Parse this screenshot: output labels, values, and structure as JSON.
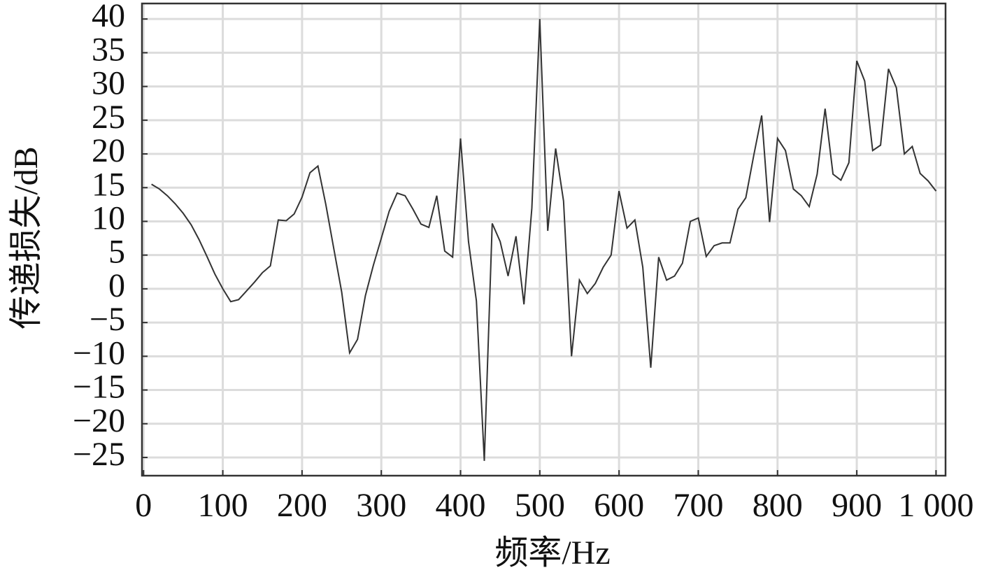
{
  "chart_data": {
    "type": "line",
    "x_label": "频率/Hz",
    "y_label": "传递损失/dB",
    "x": [
      10,
      20,
      30,
      40,
      50,
      60,
      70,
      80,
      90,
      100,
      110,
      120,
      130,
      140,
      150,
      160,
      170,
      180,
      190,
      200,
      210,
      220,
      230,
      240,
      250,
      260,
      270,
      280,
      290,
      300,
      310,
      320,
      330,
      340,
      350,
      360,
      370,
      380,
      390,
      400,
      410,
      420,
      430,
      440,
      450,
      460,
      470,
      480,
      490,
      500,
      510,
      520,
      530,
      540,
      550,
      560,
      570,
      580,
      590,
      600,
      610,
      620,
      630,
      640,
      650,
      660,
      670,
      680,
      690,
      700,
      710,
      720,
      730,
      740,
      750,
      760,
      770,
      780,
      790,
      800,
      810,
      820,
      830,
      840,
      850,
      860,
      870,
      880,
      890,
      900,
      910,
      920,
      930,
      940,
      950,
      960,
      970,
      980,
      990,
      1000
    ],
    "values": [
      15.5,
      14.8,
      13.8,
      12.6,
      11.2,
      9.5,
      7.3,
      4.8,
      2.2,
      0,
      -1.9,
      -1.6,
      -0.3,
      1,
      2.4,
      3.4,
      10.2,
      10.1,
      11.1,
      13.6,
      17.2,
      18.2,
      12.5,
      6,
      -0.5,
      -9.5,
      -7.5,
      -1,
      3.5,
      7.5,
      11.5,
      14.2,
      13.8,
      11.8,
      9.6,
      9.1,
      13.8,
      5.6,
      4.7,
      22.3,
      7,
      -1.8,
      -25.5,
      9.7,
      7,
      1.9,
      7.8,
      -2.3,
      12,
      40,
      8.6,
      20.8,
      13,
      -10,
      1.3,
      -0.7,
      0.8,
      3.2,
      5,
      14.5,
      9,
      10.2,
      3.2,
      -11.7,
      4.7,
      1.3,
      1.9,
      3.8,
      10,
      10.5,
      4.8,
      6.4,
      6.8,
      6.8,
      11.8,
      13.5,
      19.8,
      25.7,
      9.9,
      22.3,
      20.5,
      14.8,
      13.8,
      12.2,
      17,
      26.7,
      17,
      16.1,
      18.7,
      33.8,
      30.8,
      20.5,
      21.3,
      32.6,
      29.8,
      20,
      21.1,
      17.1,
      16,
      14.5
    ],
    "color": "#333333",
    "xlim": [
      -2,
      1012
    ],
    "ylim": [
      -27.7,
      42.3
    ],
    "xticks": [
      0,
      100,
      200,
      300,
      400,
      500,
      600,
      700,
      800,
      900,
      {
        "value": 1000,
        "label": "1 000"
      }
    ],
    "yticks": [
      {
        "value": -25,
        "label": "−25"
      },
      {
        "value": -20,
        "label": "−20"
      },
      {
        "value": -15,
        "label": "−15"
      },
      {
        "value": -10,
        "label": "−10"
      },
      {
        "value": -5,
        "label": "−5"
      },
      0,
      5,
      10,
      15,
      20,
      25,
      30,
      35,
      40
    ],
    "grid": true
  }
}
